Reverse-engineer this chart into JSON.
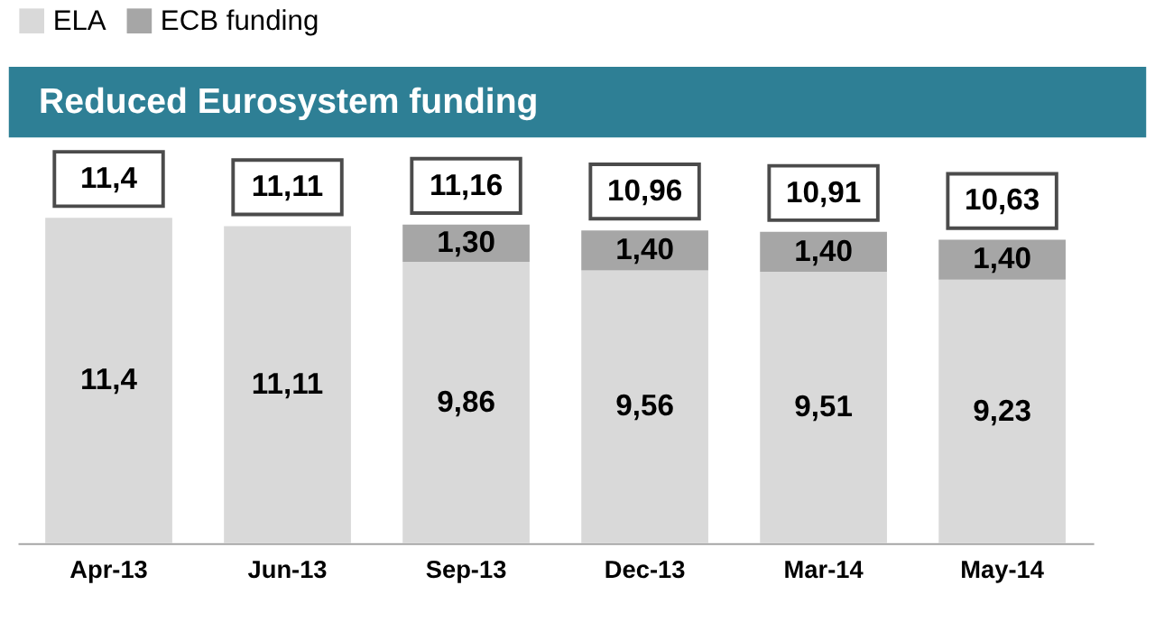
{
  "chart_data": {
    "type": "bar",
    "title": "Reduced Eurosystem funding",
    "stacked": true,
    "legend": "top",
    "grid": false,
    "categories": [
      "Apr-13",
      "Jun-13",
      "Sep-13",
      "Dec-13",
      "Mar-14",
      "May-14"
    ],
    "series": [
      {
        "name": "ELA",
        "color": "#d9d9d9",
        "values": [
          11.4,
          11.11,
          9.86,
          9.56,
          9.51,
          9.23
        ],
        "value_labels": [
          "11,4",
          "11,11",
          "9,86",
          "9,56",
          "9,51",
          "9,23"
        ]
      },
      {
        "name": "ECB funding",
        "color": "#a6a6a6",
        "values": [
          null,
          null,
          1.3,
          1.4,
          1.4,
          1.4
        ],
        "value_labels": [
          null,
          null,
          "1,30",
          "1,40",
          "1,40",
          "1,40"
        ]
      }
    ],
    "totals": [
      "11,4",
      "11,11",
      "11,16",
      "10,96",
      "10,91",
      "10,63"
    ]
  }
}
